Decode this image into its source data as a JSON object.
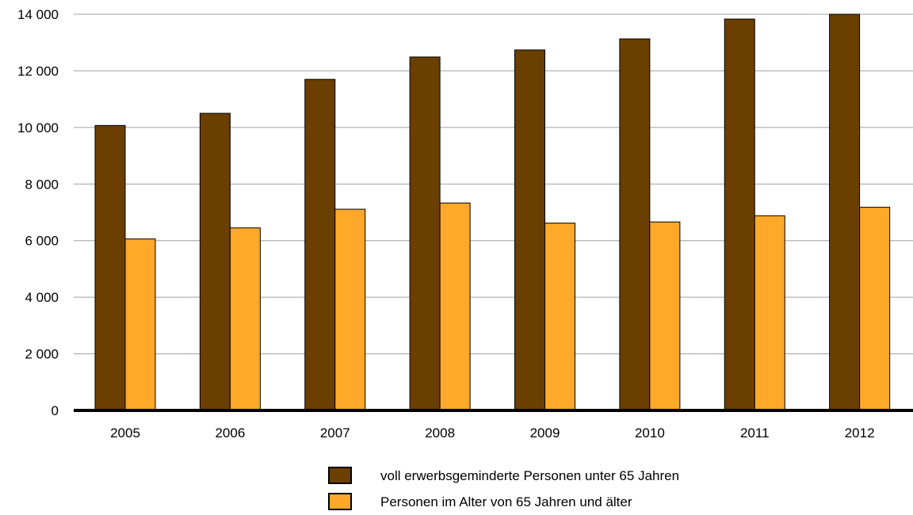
{
  "chart_data": {
    "type": "bar",
    "categories": [
      "2005",
      "2006",
      "2007",
      "2008",
      "2009",
      "2010",
      "2011",
      "2012"
    ],
    "series": [
      {
        "name": "voll erwerbsgeminderte Personen unter 65 Jahren",
        "color": "#6b3f00",
        "values": [
          10070,
          10500,
          11700,
          12490,
          12740,
          13130,
          13830,
          14000
        ]
      },
      {
        "name": "Personen im Alter von 65 Jahren und älter",
        "color": "#ffa829",
        "values": [
          6060,
          6450,
          7110,
          7330,
          6620,
          6660,
          6880,
          7180
        ]
      }
    ],
    "ylim": [
      0,
      14000
    ],
    "yticks": [
      "0",
      "2 000",
      "4 000",
      "6 000",
      "8 000",
      "10 000",
      "12 000",
      "14 000"
    ],
    "grid": true,
    "legend_position": "bottom-center",
    "title": "",
    "xlabel": "",
    "ylabel": ""
  }
}
